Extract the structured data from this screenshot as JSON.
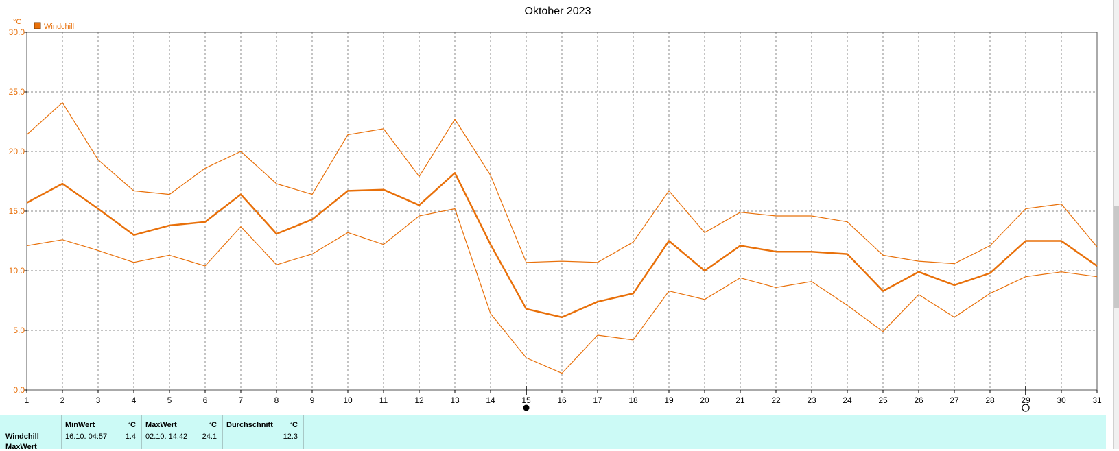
{
  "chart_data": {
    "type": "line",
    "title": "Oktober 2023",
    "ylabel": "°C",
    "legend": [
      "Windchill"
    ],
    "legend_placement": "top-left",
    "x": [
      1,
      2,
      3,
      4,
      5,
      6,
      7,
      8,
      9,
      10,
      11,
      12,
      13,
      14,
      15,
      16,
      17,
      18,
      19,
      20,
      21,
      22,
      23,
      24,
      25,
      26,
      27,
      28,
      29,
      30,
      31
    ],
    "xlim": [
      1,
      31
    ],
    "ylim": [
      0,
      30
    ],
    "yticks": [
      "0.0",
      "5.0",
      "10.0",
      "15.0",
      "20.0",
      "25.0",
      "30.0"
    ],
    "grid": true,
    "series": [
      {
        "name": "Windchill",
        "role": "max",
        "values": [
          21.4,
          24.1,
          19.3,
          16.7,
          16.4,
          18.6,
          20.0,
          17.3,
          16.4,
          21.4,
          21.9,
          17.9,
          22.7,
          18.0,
          10.7,
          10.8,
          10.7,
          12.4,
          16.7,
          13.2,
          14.9,
          14.6,
          14.6,
          14.1,
          11.3,
          10.8,
          10.6,
          12.1,
          15.2,
          15.6,
          12.0
        ]
      },
      {
        "name": "Windchill",
        "role": "avg",
        "values": [
          15.7,
          17.3,
          15.2,
          13.0,
          13.8,
          14.1,
          16.4,
          13.1,
          14.3,
          16.7,
          16.8,
          15.5,
          18.2,
          12.2,
          6.8,
          6.1,
          7.4,
          8.1,
          12.5,
          10.0,
          12.1,
          11.6,
          11.6,
          11.4,
          8.3,
          9.9,
          8.8,
          9.8,
          12.5,
          12.5,
          10.4
        ]
      },
      {
        "name": "Windchill",
        "role": "min",
        "values": [
          12.1,
          12.6,
          11.7,
          10.7,
          11.3,
          10.4,
          13.7,
          10.5,
          11.4,
          13.2,
          12.2,
          14.6,
          15.2,
          6.4,
          2.7,
          1.4,
          4.6,
          4.2,
          8.3,
          7.6,
          9.4,
          8.6,
          9.1,
          7.1,
          4.9,
          8.0,
          6.1,
          8.1,
          9.5,
          9.9,
          9.5
        ]
      }
    ],
    "markers": [
      {
        "x": 15,
        "symbol": "filled-circle"
      },
      {
        "x": 29,
        "symbol": "open-circle"
      }
    ],
    "colors": {
      "series": "#e8700a",
      "grid": "#8a8a8a",
      "axis": "#000000"
    }
  },
  "stats": {
    "row_labels": [
      "Windchill",
      "MaxWert"
    ],
    "min": {
      "header": "MinWert",
      "unit": "°C",
      "datetime": "16.10.  04:57",
      "value": "1.4"
    },
    "max": {
      "header": "MaxWert",
      "unit": "°C",
      "datetime": "02.10.  14:42",
      "value": "24.1"
    },
    "avg": {
      "header": "Durchschnitt",
      "unit": "°C",
      "value": "12.3"
    }
  }
}
